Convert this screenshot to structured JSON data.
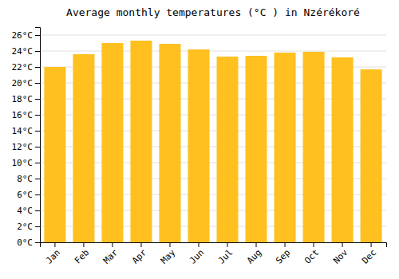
{
  "chart_data": {
    "type": "bar",
    "title": "Average monthly temperatures (°C ) in Nzérékoré",
    "categories": [
      "Jan",
      "Feb",
      "Mar",
      "Apr",
      "May",
      "Jun",
      "Jul",
      "Aug",
      "Sep",
      "Oct",
      "Nov",
      "Dec"
    ],
    "values": [
      22.0,
      23.6,
      25.0,
      25.3,
      24.9,
      24.2,
      23.3,
      23.4,
      23.8,
      23.9,
      23.2,
      21.7
    ],
    "color": "#FFC020",
    "ylim": [
      0,
      27
    ],
    "yticks": [
      {
        "value": 0,
        "label": "0°C"
      },
      {
        "value": 2,
        "label": "2°C"
      },
      {
        "value": 4,
        "label": "4°C"
      },
      {
        "value": 6,
        "label": "6°C"
      },
      {
        "value": 8,
        "label": "8°C"
      },
      {
        "value": 10,
        "label": "10°C"
      },
      {
        "value": 12,
        "label": "12°C"
      },
      {
        "value": 14,
        "label": "14°C"
      },
      {
        "value": 16,
        "label": "16°C"
      },
      {
        "value": 18,
        "label": "18°C"
      },
      {
        "value": 20,
        "label": "20°C"
      },
      {
        "value": 22,
        "label": "22°C"
      },
      {
        "value": 24,
        "label": "24°C"
      },
      {
        "value": 26,
        "label": "26°C"
      }
    ],
    "grid": true
  }
}
